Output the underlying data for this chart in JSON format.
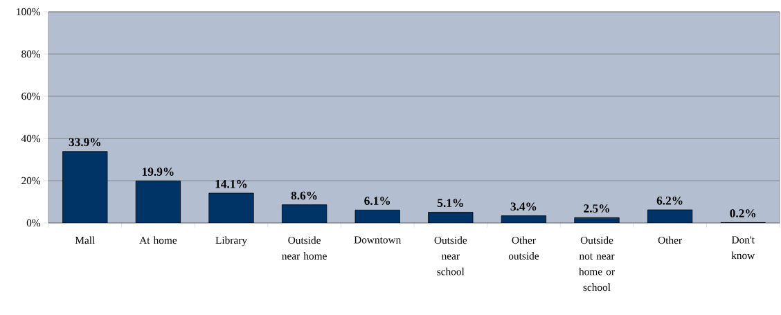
{
  "chart_data": {
    "type": "bar",
    "categories": [
      "Mall",
      "At home",
      "Library",
      "Outside near home",
      "Downtown",
      "Outside near school",
      "Other outside",
      "Outside not near home or school",
      "Other",
      "Don't know"
    ],
    "values": [
      33.9,
      19.9,
      14.1,
      8.6,
      6.1,
      5.1,
      3.4,
      2.5,
      6.2,
      0.2
    ],
    "value_labels": [
      "33.9%",
      "19.9%",
      "14.1%",
      "8.6%",
      "6.1%",
      "5.1%",
      "3.4%",
      "2.5%",
      "6.2%",
      "0.2%"
    ],
    "color": "#003366",
    "ylim": [
      0,
      100
    ],
    "yticks": [
      {
        "value": 0,
        "label": "0%"
      },
      {
        "value": 20,
        "label": "20%"
      },
      {
        "value": 40,
        "label": "40%"
      },
      {
        "value": 60,
        "label": "60%"
      },
      {
        "value": 80,
        "label": "80%"
      },
      {
        "value": 100,
        "label": "100%"
      }
    ],
    "grid": "y"
  }
}
